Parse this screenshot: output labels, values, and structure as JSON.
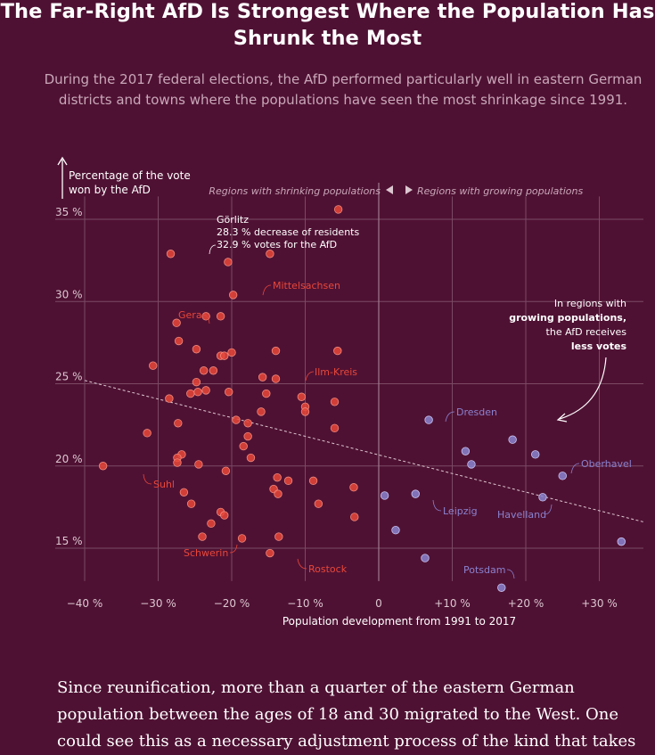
{
  "title": "The Far-Right AfD Is Strongest Where the Population Has Shrunk the Most",
  "subtitle": "During the 2017 federal elections, the AfD performed particularly well in eastern German districts and towns where the populations have seen the most shrinkage since 1991.",
  "body_text": "Since reunification, more than a quarter of the eastern German population between the ages of 18 and 30 migrated to the West. One could see this as a necessary adjustment process of the kind that takes",
  "colors": {
    "background": "#4f1133",
    "shrinking": "#e8473a",
    "growing": "#8a82cf",
    "grid": "#7a4a64"
  },
  "chart_data": {
    "type": "scatter",
    "xlabel": "Population development from 1991 to 2017",
    "ylabel": "Percentage of the vote won by the AfD",
    "xlim": [
      -44,
      36
    ],
    "ylim": [
      13,
      36.5
    ],
    "x_ticks": [
      -40,
      -30,
      -20,
      -10,
      0,
      10,
      20,
      30
    ],
    "x_tick_labels": [
      "−40 %",
      "−30 %",
      "−20 %",
      "−10 %",
      "0",
      "+10 %",
      "+20 %",
      "+30 %"
    ],
    "y_ticks": [
      15,
      20,
      25,
      30,
      35
    ],
    "y_tick_labels": [
      "15 %",
      "20 %",
      "25 %",
      "30 %",
      "35 %"
    ],
    "region_labels": {
      "shrinking": "Regions with shrinking populations",
      "growing": "Regions with growing populations"
    },
    "trend_line": {
      "from": [
        -40,
        25.2
      ],
      "to": [
        36,
        16.6
      ]
    },
    "annotation": {
      "line1": "In regions with",
      "line2": "growing populations,",
      "line3": "the AfD receives",
      "line4": "less votes"
    },
    "goerlitz_note": {
      "line1": "Görlitz",
      "line2": "28.3 % decrease of residents",
      "line3": "32.9 % votes for the AfD"
    },
    "series": [
      {
        "group": "shrinking",
        "points": [
          [
            -5.5,
            35.6
          ],
          [
            -28.3,
            32.9
          ],
          [
            -20.5,
            32.4
          ],
          [
            -14.8,
            32.9
          ],
          [
            -19.8,
            30.4
          ],
          [
            -27.5,
            28.7
          ],
          [
            -23.5,
            29.1
          ],
          [
            -21.5,
            29.1
          ],
          [
            -27.2,
            27.6
          ],
          [
            -24.8,
            27.1
          ],
          [
            -20.0,
            26.9
          ],
          [
            -21.5,
            26.7
          ],
          [
            -21.0,
            26.7
          ],
          [
            -14.0,
            27.0
          ],
          [
            -5.6,
            27.0
          ],
          [
            -30.7,
            26.1
          ],
          [
            -23.8,
            25.8
          ],
          [
            -22.5,
            25.8
          ],
          [
            -15.8,
            25.4
          ],
          [
            -14.0,
            25.3
          ],
          [
            -24.8,
            25.1
          ],
          [
            -25.6,
            24.4
          ],
          [
            -24.6,
            24.5
          ],
          [
            -23.5,
            24.6
          ],
          [
            -20.4,
            24.5
          ],
          [
            -15.3,
            24.4
          ],
          [
            -10.5,
            24.2
          ],
          [
            -28.5,
            24.1
          ],
          [
            -6.0,
            23.9
          ],
          [
            -10.0,
            23.6
          ],
          [
            -10.0,
            23.3
          ],
          [
            -16.0,
            23.3
          ],
          [
            -19.4,
            22.8
          ],
          [
            -17.8,
            22.6
          ],
          [
            -27.3,
            22.6
          ],
          [
            -6.0,
            22.3
          ],
          [
            -31.5,
            22.0
          ],
          [
            -17.8,
            21.8
          ],
          [
            -18.4,
            21.2
          ],
          [
            -26.8,
            20.7
          ],
          [
            -27.4,
            20.5
          ],
          [
            -17.4,
            20.5
          ],
          [
            -27.4,
            20.2
          ],
          [
            -24.5,
            20.1
          ],
          [
            -37.5,
            20.0
          ],
          [
            -20.8,
            19.7
          ],
          [
            -13.8,
            19.3
          ],
          [
            -8.9,
            19.1
          ],
          [
            -12.3,
            19.1
          ],
          [
            -14.3,
            18.6
          ],
          [
            -13.7,
            18.3
          ],
          [
            -3.4,
            18.7
          ],
          [
            -26.5,
            18.4
          ],
          [
            -25.5,
            17.7
          ],
          [
            -8.2,
            17.7
          ],
          [
            -21.5,
            17.2
          ],
          [
            -21.0,
            17.0
          ],
          [
            -3.3,
            16.9
          ],
          [
            -22.8,
            16.5
          ],
          [
            -24.0,
            15.7
          ],
          [
            -18.6,
            15.6
          ],
          [
            -13.6,
            15.7
          ],
          [
            -14.8,
            14.7
          ]
        ]
      },
      {
        "group": "growing",
        "points": [
          [
            6.8,
            22.8
          ],
          [
            18.2,
            21.6
          ],
          [
            11.8,
            20.9
          ],
          [
            21.3,
            20.7
          ],
          [
            12.6,
            20.1
          ],
          [
            25.0,
            19.4
          ],
          [
            0.8,
            18.2
          ],
          [
            5.0,
            18.3
          ],
          [
            22.3,
            18.1
          ],
          [
            2.3,
            16.1
          ],
          [
            33.0,
            15.4
          ],
          [
            6.3,
            14.4
          ],
          [
            16.7,
            12.6
          ]
        ]
      }
    ],
    "labels": [
      {
        "text": "Mittelsachsen",
        "group": "shrinking"
      },
      {
        "text": "Gera",
        "group": "shrinking"
      },
      {
        "text": "Ilm-Kreis",
        "group": "shrinking"
      },
      {
        "text": "Suhl",
        "group": "shrinking"
      },
      {
        "text": "Schwerin",
        "group": "shrinking"
      },
      {
        "text": "Rostock",
        "group": "shrinking"
      },
      {
        "text": "Dresden",
        "group": "growing"
      },
      {
        "text": "Leipzig",
        "group": "growing"
      },
      {
        "text": "Havelland",
        "group": "growing"
      },
      {
        "text": "Oberhavel",
        "group": "growing"
      },
      {
        "text": "Potsdam",
        "group": "growing"
      }
    ]
  }
}
